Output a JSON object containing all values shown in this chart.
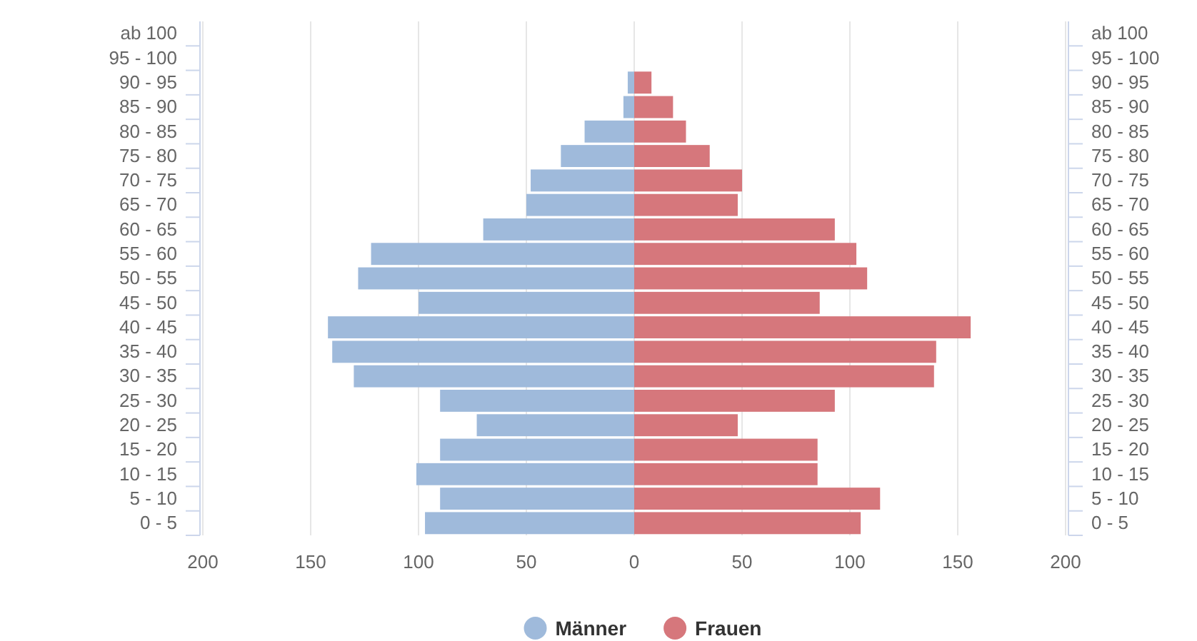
{
  "chart_data": {
    "type": "bar",
    "orientation": "horizontal",
    "stacked": true,
    "categories": [
      "ab 100",
      "95 - 100",
      "90 - 95",
      "85 - 90",
      "80 - 85",
      "75 - 80",
      "70 - 75",
      "65 - 70",
      "60 - 65",
      "55 - 60",
      "50 - 55",
      "45 - 50",
      "40 - 45",
      "35 - 40",
      "30 - 35",
      "25 - 30",
      "20 - 25",
      "15 - 20",
      "10 - 15",
      "5 - 10",
      "0 - 5"
    ],
    "y2_categories": [
      "ab 100",
      "95 - 100",
      "90 - 95",
      "85 - 90",
      "80 - 85",
      "75 - 80",
      "70 - 75",
      "65 - 70",
      "60 - 65",
      "55 - 60",
      "50 - 55",
      "45 - 50",
      "40 - 45",
      "35 - 40",
      "30 - 35",
      "25 - 30",
      "20 - 25",
      "15 - 20",
      "10 - 15",
      "5 - 10",
      "0 - 5"
    ],
    "series": [
      {
        "name": "Männer",
        "color": "#9fbadb",
        "values": [
          null,
          null,
          -3,
          -5,
          -23,
          -34,
          -48,
          -50,
          -70,
          -122,
          -128,
          -100,
          -142,
          -140,
          -130,
          -90,
          -73,
          -90,
          -101,
          -90,
          -97
        ]
      },
      {
        "name": "Frauen",
        "color": "#d6777c",
        "values": [
          null,
          null,
          8,
          18,
          24,
          35,
          50,
          48,
          93,
          103,
          108,
          86,
          156,
          140,
          139,
          93,
          48,
          85,
          85,
          114,
          105
        ]
      }
    ],
    "xlim": [
      -200,
      200
    ],
    "xticks": [
      {
        "value": -200,
        "label": "200"
      },
      {
        "value": -150,
        "label": "150"
      },
      {
        "value": -100,
        "label": "100"
      },
      {
        "value": -50,
        "label": "50"
      },
      0,
      50,
      100,
      150,
      200
    ],
    "grid": "x",
    "legend": "bottom",
    "marker": "circle"
  }
}
